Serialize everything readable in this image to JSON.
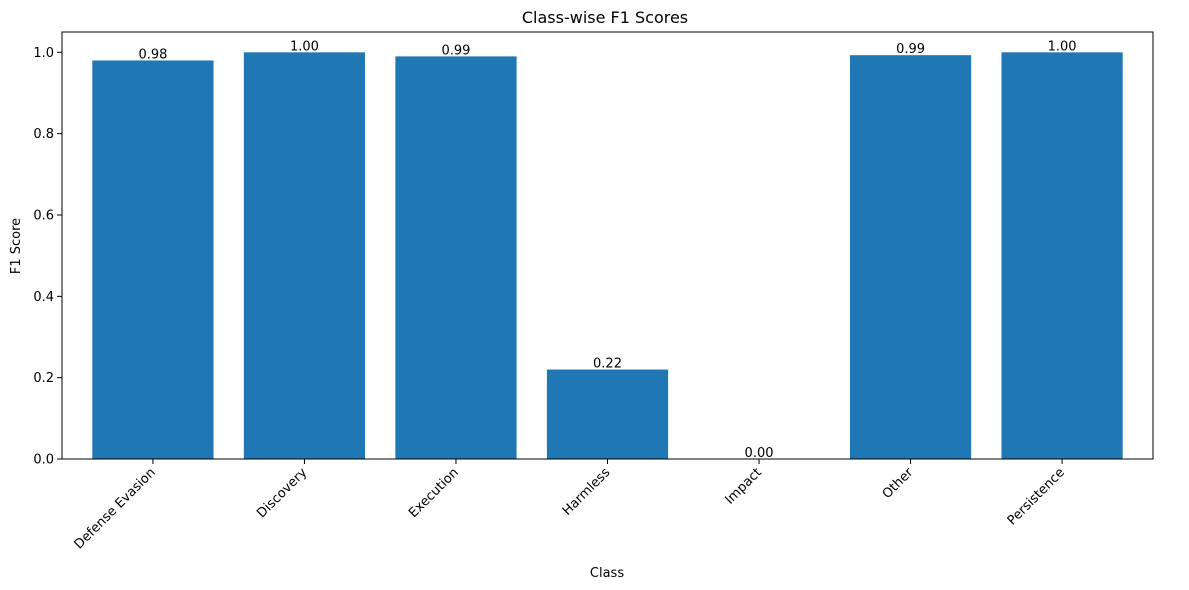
{
  "chart_data": {
    "type": "bar",
    "title": "Class-wise F1 Scores",
    "xlabel": "Class",
    "ylabel": "F1 Score",
    "categories": [
      "Defense Evasion",
      "Discovery",
      "Execution",
      "Harmless",
      "Impact",
      "Other",
      "Persistence"
    ],
    "values": [
      0.98,
      1.0,
      0.99,
      0.22,
      0.0,
      0.993,
      1.0
    ],
    "data_labels": [
      "0.98",
      "1.00",
      "0.99",
      "0.22",
      "0.00",
      "0.99",
      "1.00"
    ],
    "ylim": [
      0,
      1.05
    ],
    "yticks": [
      0.0,
      0.2,
      0.4,
      0.6,
      0.8,
      1.0
    ],
    "ytick_labels": [
      "0.0",
      "0.2",
      "0.4",
      "0.6",
      "0.8",
      "1.0"
    ],
    "bar_color": "#1f77b4",
    "grid": false,
    "xtick_rotation_deg": 45
  }
}
